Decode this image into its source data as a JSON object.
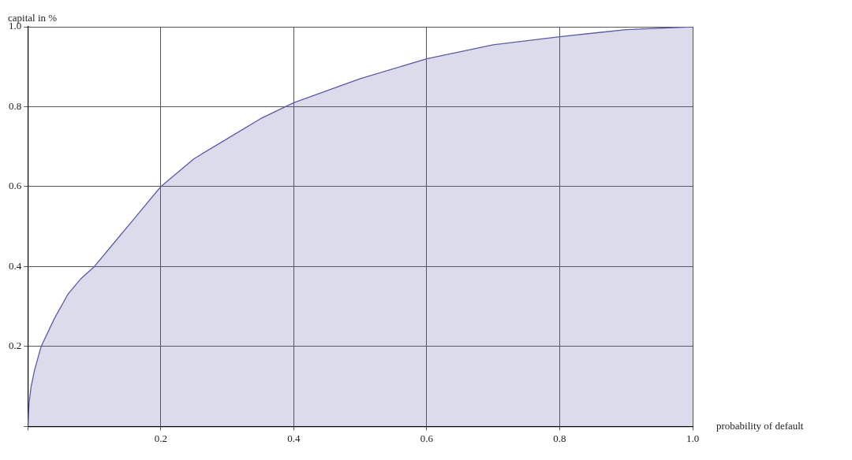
{
  "chart_data": {
    "type": "area",
    "xlabel": "probability of default",
    "ylabel": "capital in %",
    "x": [
      0,
      0.002,
      0.005,
      0.01,
      0.02,
      0.04,
      0.06,
      0.08,
      0.1,
      0.13,
      0.16,
      0.2,
      0.25,
      0.3,
      0.35,
      0.4,
      0.5,
      0.6,
      0.7,
      0.8,
      0.9,
      1.0
    ],
    "series": [
      {
        "color": "#5b5ba6",
        "values": [
          0,
          0.06,
          0.1,
          0.14,
          0.2,
          0.27,
          0.33,
          0.37,
          0.4,
          0.46,
          0.52,
          0.6,
          0.67,
          0.72,
          0.77,
          0.81,
          0.87,
          0.92,
          0.955,
          0.975,
          0.993,
          1.0
        ]
      }
    ],
    "xlim": [
      0,
      1.0
    ],
    "ylim": [
      0,
      1.0
    ],
    "xticks": [
      {
        "value": 0,
        "label": null
      },
      0.2,
      0.4,
      0.6,
      0.8,
      {
        "value": 1.0,
        "label": "1.0"
      }
    ],
    "yticks": [
      {
        "value": 0,
        "label": null
      },
      0.2,
      0.4,
      0.6,
      0.8,
      {
        "value": 1.0,
        "label": "1.0"
      }
    ],
    "grid": true,
    "legend": false,
    "marker": "none",
    "line_style": "solid"
  }
}
